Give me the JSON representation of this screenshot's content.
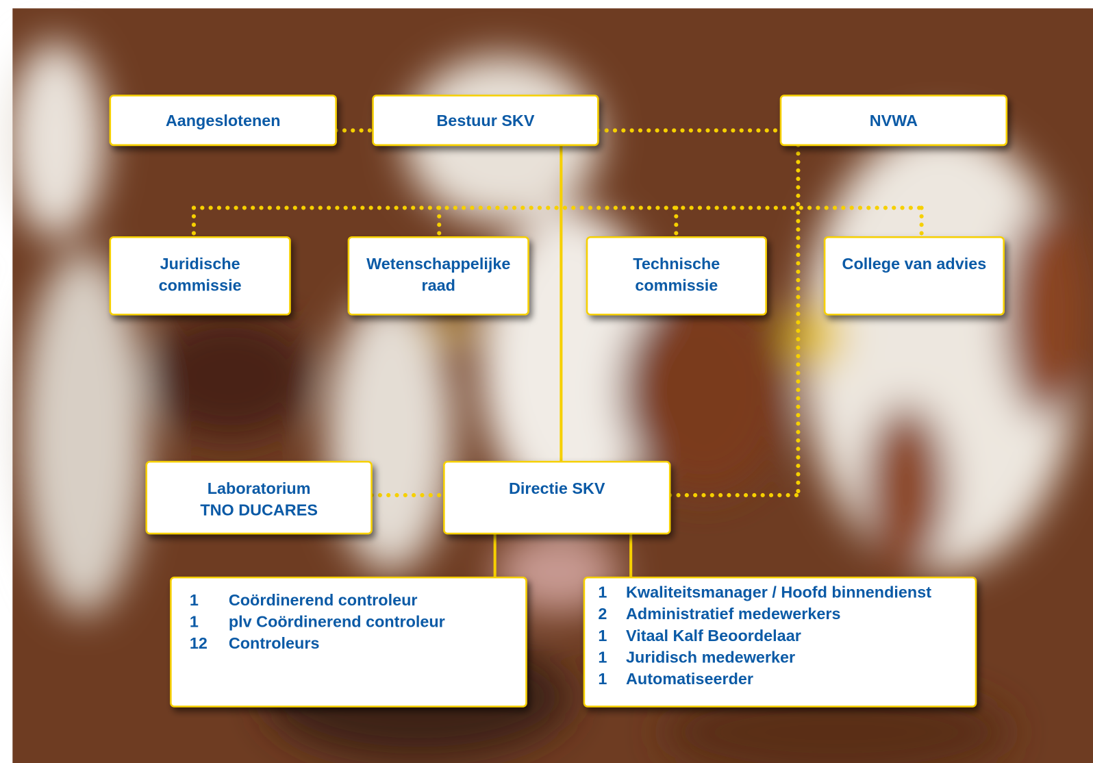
{
  "nodes": [
    {
      "lines": [
        "Aangeslotenen"
      ]
    },
    {
      "lines": [
        "Bestuur SKV"
      ]
    },
    {
      "lines": [
        "NVWA"
      ]
    },
    {
      "lines": [
        "Juridische",
        "commissie"
      ]
    },
    {
      "lines": [
        "Wetenschappelijke",
        "raad"
      ]
    },
    {
      "lines": [
        "Technische",
        "commissie"
      ]
    },
    {
      "lines": [
        "College van advies"
      ]
    },
    {
      "lines": [
        "Laboratorium",
        "TNO DUCARES"
      ]
    },
    {
      "lines": [
        "Directie SKV"
      ]
    }
  ],
  "staff": [
    {
      "rows": [
        {
          "count": 1,
          "role": "Coördinerend controleur"
        },
        {
          "count": 1,
          "role": "plv Coördinerend controleur"
        },
        {
          "count": 12,
          "role": "Controleurs"
        }
      ]
    },
    {
      "rows": [
        {
          "count": 1,
          "role": "Kwaliteitsmanager / Hoofd binnendienst"
        },
        {
          "count": 2,
          "role": "Administratief medewerkers"
        },
        {
          "count": 1,
          "role": "Vitaal Kalf Beoordelaar"
        },
        {
          "count": 1,
          "role": "Juridisch medewerker"
        },
        {
          "count": 1,
          "role": "Automatiseerder"
        }
      ]
    }
  ]
}
